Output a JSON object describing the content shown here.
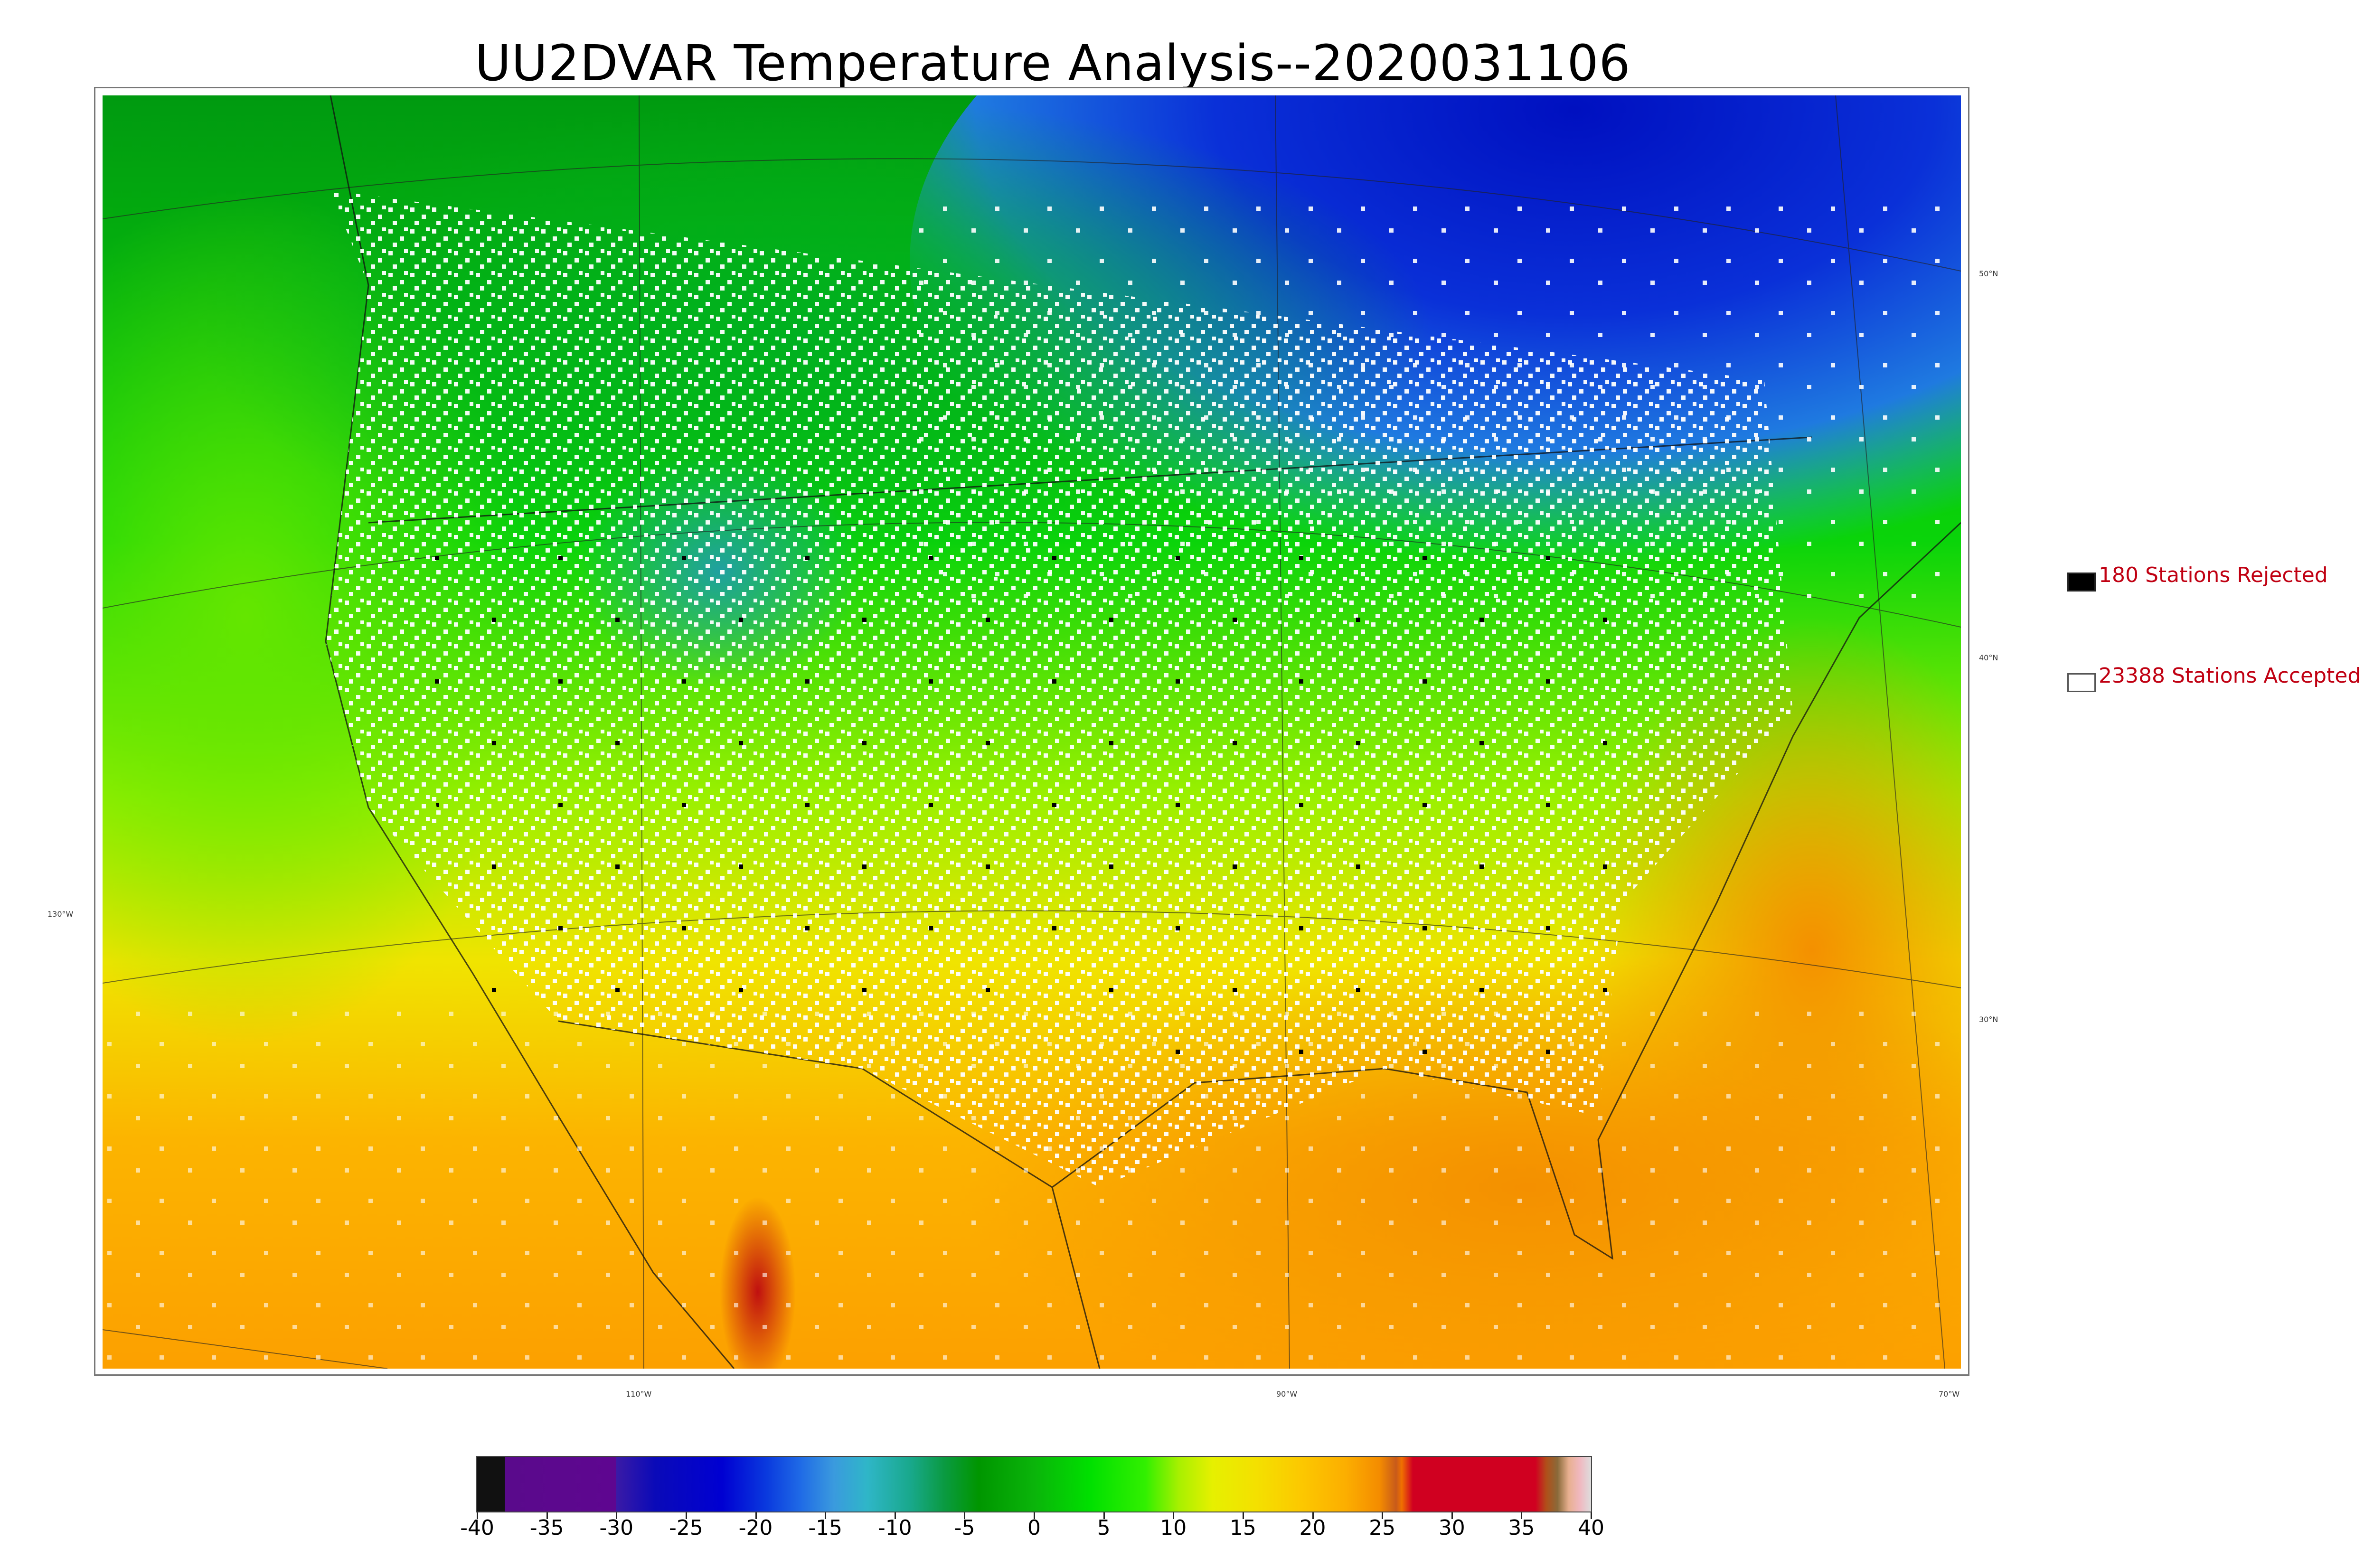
{
  "title": "UU2DVAR Temperature Analysis--2020031106",
  "legend": {
    "rejected_label": "180 Stations Rejected",
    "accepted_label": "23388 Stations Accepted",
    "rejected_color": "#000000",
    "accepted_color": "#ffffff",
    "text_color": "#c00012"
  },
  "latitude_labels": [
    "50°N",
    "40°N",
    "30°N"
  ],
  "longitude_labels": [
    "130°W",
    "110°W",
    "90°W",
    "70°W"
  ],
  "colorbar": {
    "min": -40,
    "max": 40,
    "tick_labels": [
      "-40",
      "-35",
      "-30",
      "-25",
      "-20",
      "-15",
      "-10",
      "-5",
      "0",
      "5",
      "10",
      "15",
      "20",
      "25",
      "30",
      "35",
      "40"
    ]
  }
}
